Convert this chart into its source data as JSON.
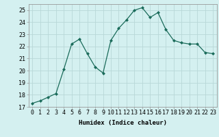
{
  "x": [
    0,
    1,
    2,
    3,
    4,
    5,
    6,
    7,
    8,
    9,
    10,
    11,
    12,
    13,
    14,
    15,
    16,
    17,
    18,
    19,
    20,
    21,
    22,
    23
  ],
  "y": [
    17.3,
    17.5,
    17.8,
    18.1,
    20.1,
    22.2,
    22.6,
    21.4,
    20.3,
    19.8,
    22.5,
    23.5,
    24.2,
    25.0,
    25.2,
    24.4,
    24.8,
    23.4,
    22.5,
    22.3,
    22.2,
    22.2,
    21.5,
    21.4
  ],
  "line_color": "#1a6b5a",
  "marker": "D",
  "marker_size": 2,
  "bg_color": "#d4f0f0",
  "grid_color": "#b8d8d8",
  "xlabel": "Humidex (Indice chaleur)",
  "ylim": [
    17,
    25.5
  ],
  "xlim": [
    -0.5,
    23.5
  ],
  "yticks": [
    17,
    18,
    19,
    20,
    21,
    22,
    23,
    24,
    25
  ],
  "xticks": [
    0,
    1,
    2,
    3,
    4,
    5,
    6,
    7,
    8,
    9,
    10,
    11,
    12,
    13,
    14,
    15,
    16,
    17,
    18,
    19,
    20,
    21,
    22,
    23
  ],
  "label_fontsize": 6.5,
  "tick_fontsize": 6.0
}
